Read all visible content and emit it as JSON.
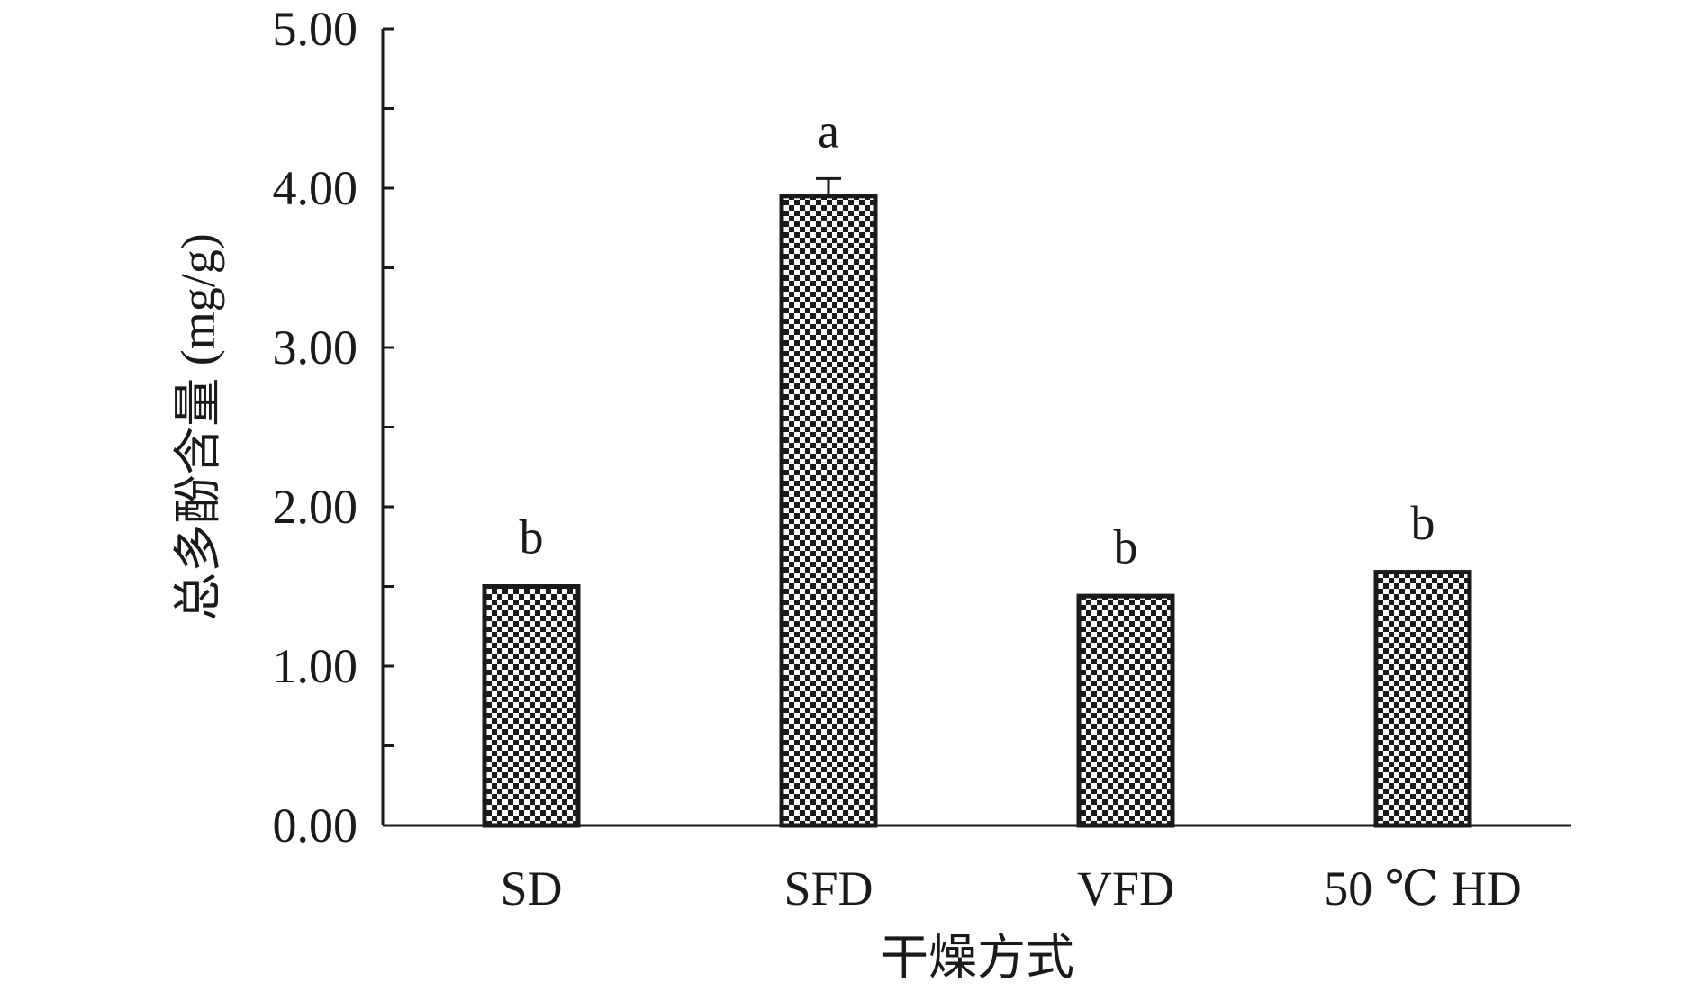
{
  "chart_data": {
    "type": "bar",
    "title": "",
    "xlabel": "干燥方式",
    "ylabel": "总多酚含量 (mg/g)",
    "categories": [
      "SD",
      "SFD",
      "VFD",
      "50 ℃ HD"
    ],
    "values": [
      1.5,
      3.95,
      1.44,
      1.59
    ],
    "errors": [
      0.01,
      0.11,
      0.01,
      0.01
    ],
    "significance": [
      "b",
      "a",
      "b",
      "b"
    ],
    "ylim": [
      0,
      5
    ],
    "yticks": [
      "0.00",
      "1.00",
      "2.00",
      "3.00",
      "4.00",
      "5.00"
    ],
    "ytick_values": [
      0,
      1,
      2,
      3,
      4,
      5
    ],
    "grid": false,
    "bar_fill": "checkered black and white pattern",
    "colors": {
      "bar_dark": "#1a1a1a",
      "bar_light": "#ffffff",
      "axis": "#1a1a1a"
    }
  }
}
